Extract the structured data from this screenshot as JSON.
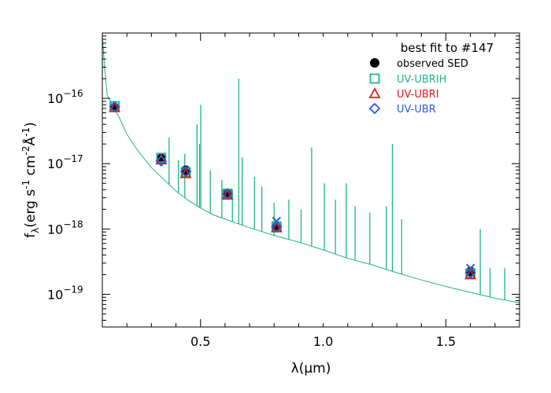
{
  "chart_data": {
    "type": "scatter",
    "title": "best fit to #147",
    "xlabel": "λ(μm)",
    "ylabel_parts": [
      "f",
      "λ",
      "(erg s",
      "-1",
      " cm",
      "-2",
      "Å",
      "-1",
      ")"
    ],
    "xlim": [
      0.1,
      1.8
    ],
    "ylim_log10": [
      -19.5,
      -15.0
    ],
    "yscale": "log",
    "x_ticks": [
      {
        "value": 0.5,
        "label": "0.5"
      },
      {
        "value": 1.0,
        "label": "1.0"
      },
      {
        "value": 1.5,
        "label": "1.5"
      }
    ],
    "y_ticks": [
      {
        "exp": -16,
        "base": "10",
        "sup": "−16"
      },
      {
        "exp": -17,
        "base": "10",
        "sup": "−17"
      },
      {
        "exp": -18,
        "base": "10",
        "sup": "−18"
      },
      {
        "exp": -19,
        "base": "10",
        "sup": "−19"
      }
    ],
    "legend": {
      "placement": "top-right",
      "entries": [
        {
          "label": "observed SED",
          "marker": "filled-circle",
          "color": "#000000"
        },
        {
          "label": "UV-UBRIH",
          "marker": "square",
          "color": "#1fb58a"
        },
        {
          "label": "UV-UBRI",
          "marker": "triangle",
          "color": "#e01b1b"
        },
        {
          "label": "UV-UBR",
          "marker": "diamond",
          "color": "#2a5bd7"
        }
      ]
    },
    "spectrum": {
      "color": "#1fb58a",
      "continuum": [
        [
          0.1,
          -15.05
        ],
        [
          0.11,
          -15.55
        ],
        [
          0.12,
          -15.95
        ],
        [
          0.14,
          -16.1
        ],
        [
          0.17,
          -16.3
        ],
        [
          0.2,
          -16.55
        ],
        [
          0.25,
          -16.83
        ],
        [
          0.3,
          -17.06
        ],
        [
          0.35,
          -17.24
        ],
        [
          0.4,
          -17.42
        ],
        [
          0.45,
          -17.56
        ],
        [
          0.5,
          -17.68
        ],
        [
          0.55,
          -17.78
        ],
        [
          0.6,
          -17.85
        ],
        [
          0.7,
          -17.98
        ],
        [
          0.8,
          -18.1
        ],
        [
          0.9,
          -18.2
        ],
        [
          1.0,
          -18.32
        ],
        [
          1.1,
          -18.45
        ],
        [
          1.2,
          -18.55
        ],
        [
          1.3,
          -18.67
        ],
        [
          1.4,
          -18.78
        ],
        [
          1.5,
          -18.88
        ],
        [
          1.6,
          -18.97
        ],
        [
          1.7,
          -19.06
        ],
        [
          1.8,
          -19.13
        ]
      ],
      "lines": [
        [
          0.372,
          -16.6
        ],
        [
          0.41,
          -16.95
        ],
        [
          0.436,
          -16.85
        ],
        [
          0.486,
          -16.4
        ],
        [
          0.496,
          -16.7
        ],
        [
          0.501,
          -16.1
        ],
        [
          0.54,
          -17.1
        ],
        [
          0.587,
          -17.25
        ],
        [
          0.63,
          -17.4
        ],
        [
          0.656,
          -15.7
        ],
        [
          0.67,
          -16.9
        ],
        [
          0.72,
          -17.2
        ],
        [
          0.75,
          -17.35
        ],
        [
          0.8,
          -17.6
        ],
        [
          0.86,
          -17.55
        ],
        [
          0.91,
          -17.7
        ],
        [
          0.953,
          -16.75
        ],
        [
          1.005,
          -17.3
        ],
        [
          1.05,
          -17.55
        ],
        [
          1.094,
          -17.3
        ],
        [
          1.13,
          -17.65
        ],
        [
          1.19,
          -17.75
        ],
        [
          1.257,
          -17.65
        ],
        [
          1.282,
          -16.7
        ],
        [
          1.32,
          -17.85
        ],
        [
          1.64,
          -18.0
        ],
        [
          1.68,
          -18.6
        ],
        [
          1.74,
          -18.6
        ]
      ]
    },
    "series": [
      {
        "marker": "filled-circle",
        "color": "#000000",
        "points": [
          [
            0.15,
            -16.14
          ],
          [
            0.34,
            -16.92
          ],
          [
            0.44,
            -17.1
          ],
          [
            0.61,
            -17.46
          ],
          [
            0.81,
            -17.97
          ],
          [
            1.6,
            -18.65
          ]
        ]
      },
      {
        "marker": "square",
        "color": "#1fb58a",
        "points": [
          [
            0.15,
            -16.12
          ],
          [
            0.34,
            -16.91
          ],
          [
            0.44,
            -17.13
          ],
          [
            0.61,
            -17.46
          ],
          [
            0.81,
            -17.96
          ],
          [
            1.6,
            -18.68
          ]
        ]
      },
      {
        "marker": "triangle",
        "color": "#e01b1b",
        "points": [
          [
            0.15,
            -16.14
          ],
          [
            0.34,
            -16.94
          ],
          [
            0.44,
            -17.15
          ],
          [
            0.61,
            -17.48
          ],
          [
            0.81,
            -17.98
          ],
          [
            1.6,
            -18.7
          ]
        ]
      },
      {
        "marker": "diamond",
        "color": "#2a5bd7",
        "points": [
          [
            0.15,
            -16.13
          ],
          [
            0.34,
            -16.96
          ],
          [
            0.44,
            -17.12
          ],
          [
            0.61,
            -17.46
          ],
          [
            0.81,
            -17.97
          ],
          [
            1.6,
            -18.67
          ]
        ]
      },
      {
        "marker": "cross",
        "color": "#2a5bd7",
        "points": [
          [
            0.81,
            -17.88
          ],
          [
            1.6,
            -18.6
          ]
        ]
      }
    ]
  }
}
